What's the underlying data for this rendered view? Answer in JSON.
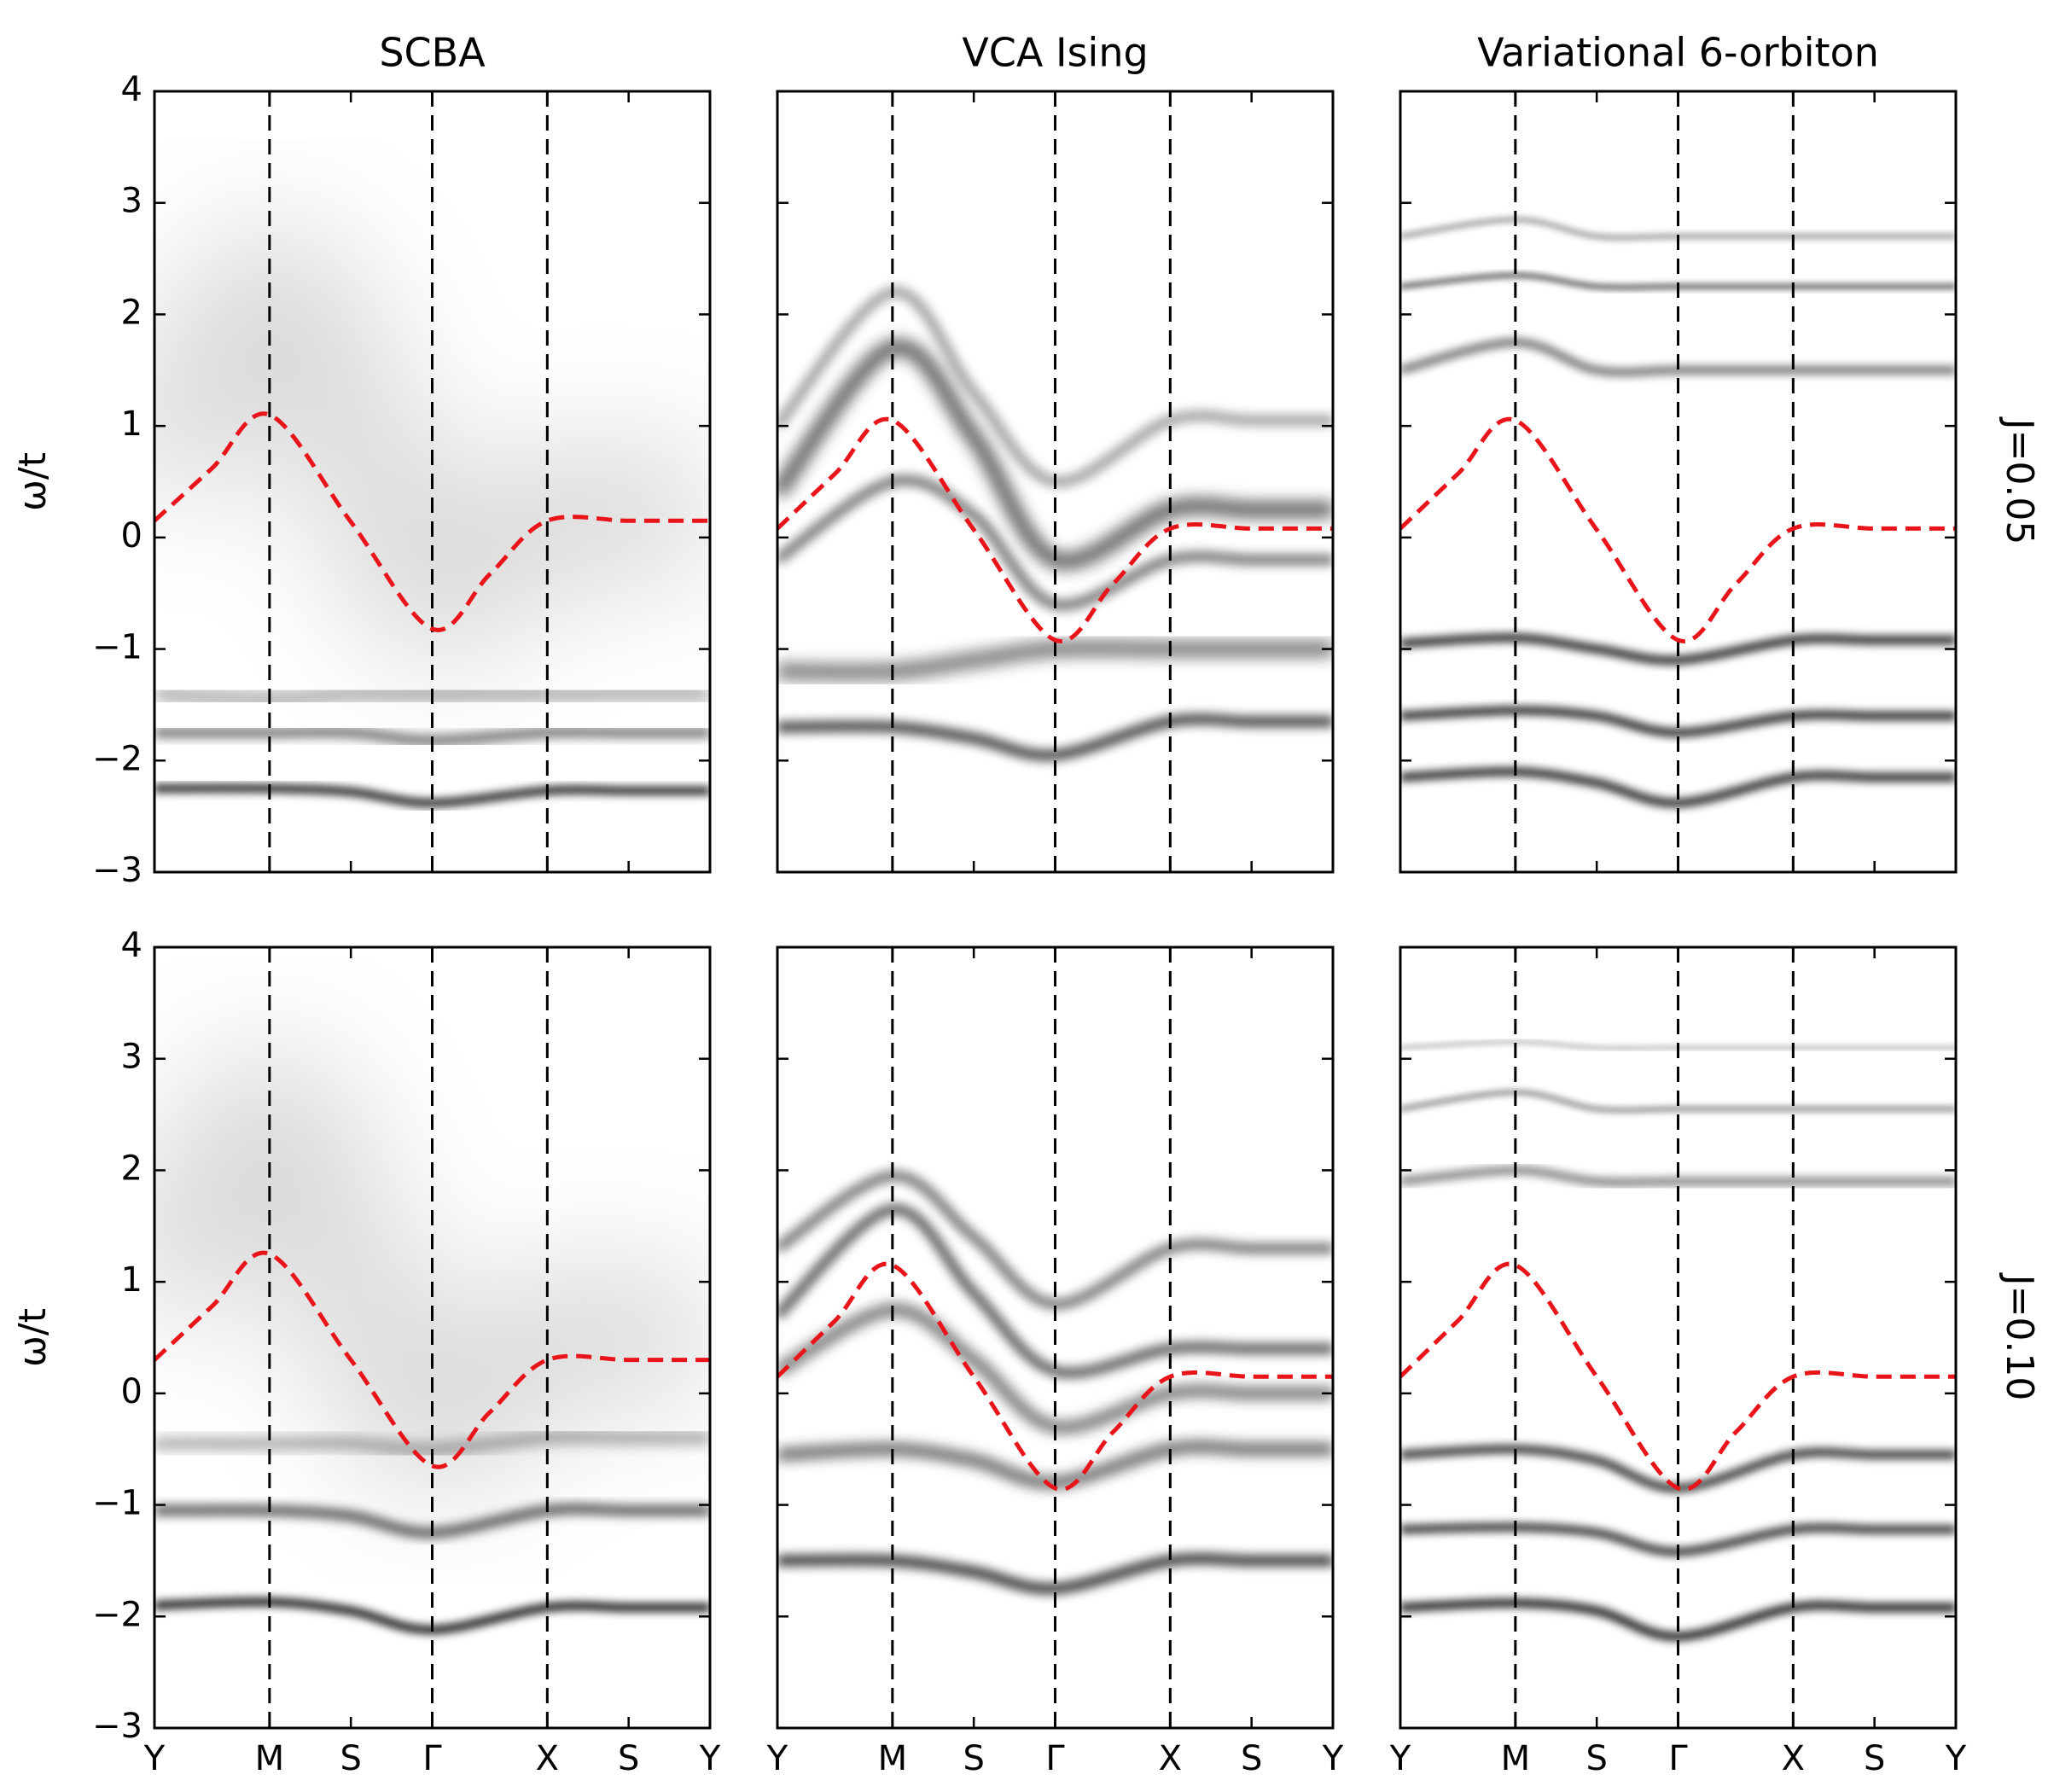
{
  "chart_data": [
    {
      "type": "spectral",
      "title": "SCBA",
      "ylabel": "ω/t",
      "xlim": [
        0,
        4.828
      ],
      "ylim": [
        -3,
        4
      ],
      "xticks": [
        0,
        1,
        1.707,
        2.414,
        3.414,
        4.121,
        4.828
      ],
      "yticks": [
        {
          "value": -3,
          "label": "−3"
        },
        {
          "value": -2,
          "label": "−2"
        },
        {
          "value": -1,
          "label": "−1"
        },
        0,
        1,
        2,
        3,
        4
      ],
      "vlines": [
        1,
        2.414,
        3.414
      ],
      "x": [
        0,
        0.5,
        1,
        1.707,
        2.414,
        2.914,
        3.414,
        4.121,
        4.828
      ],
      "values": [
        0.15,
        0.62,
        1.1,
        0.14,
        -0.82,
        -0.33,
        0.15,
        0.15,
        0.15
      ],
      "line_color": "#e8141a",
      "bands": [
        {
          "values": [
            0.5,
            2.2,
            1.0,
            -0.5,
            0.2,
            0.2,
            0.2
          ],
          "width": 1.2,
          "darkness": 0.15
        },
        {
          "values": [
            -1.4,
            -1.45,
            -1.4,
            -1.4,
            -1.4,
            -1.4,
            -1.4
          ],
          "width": 0.15,
          "darkness": 0.3
        },
        {
          "values": [
            -1.75,
            -1.75,
            -1.75,
            -1.82,
            -1.75,
            -1.75,
            -1.75
          ],
          "width": 0.1,
          "darkness": 0.5
        },
        {
          "values": [
            -2.25,
            -2.25,
            -2.28,
            -2.38,
            -2.27,
            -2.27,
            -2.27
          ],
          "width": 0.08,
          "darkness": 0.8
        }
      ]
    },
    {
      "type": "spectral",
      "title": "VCA Ising",
      "xlim": [
        0,
        4.828
      ],
      "ylim": [
        -3,
        4
      ],
      "xticks": [
        0,
        1,
        1.707,
        2.414,
        3.414,
        4.121,
        4.828
      ],
      "yticks": [
        -3,
        -2,
        -1,
        0,
        1,
        2,
        3,
        4
      ],
      "vlines": [
        1,
        2.414,
        3.414
      ],
      "x": [
        0,
        0.5,
        1,
        1.707,
        2.414,
        2.914,
        3.414,
        4.121,
        4.828
      ],
      "values": [
        0.08,
        0.57,
        1.05,
        0.07,
        -0.92,
        -0.42,
        0.08,
        0.08,
        0.08
      ],
      "line_color": "#e8141a",
      "bands": [
        {
          "values": [
            1.0,
            2.2,
            1.3,
            0.5,
            1.05,
            1.05,
            1.05
          ],
          "width": 0.1,
          "darkness": 0.35
        },
        {
          "values": [
            0.4,
            1.7,
            0.9,
            -0.2,
            0.25,
            0.25,
            0.25
          ],
          "width": 0.15,
          "darkness": 0.6
        },
        {
          "values": [
            -0.2,
            0.5,
            0.2,
            -0.6,
            -0.2,
            -0.2,
            -0.2
          ],
          "width": 0.1,
          "darkness": 0.5
        },
        {
          "values": [
            -1.2,
            -1.2,
            -1.1,
            -1.0,
            -1.0,
            -1.0,
            -1.0
          ],
          "width": 0.15,
          "darkness": 0.5
        },
        {
          "values": [
            -1.7,
            -1.7,
            -1.8,
            -1.95,
            -1.65,
            -1.65,
            -1.65
          ],
          "width": 0.1,
          "darkness": 0.7
        }
      ]
    },
    {
      "type": "spectral",
      "title": "Variational 6-orbiton",
      "side_label": "J=0.05",
      "xlim": [
        0,
        4.828
      ],
      "ylim": [
        -3,
        4
      ],
      "xticks": [
        0,
        1,
        1.707,
        2.414,
        3.414,
        4.121,
        4.828
      ],
      "yticks": [
        -3,
        -2,
        -1,
        0,
        1,
        2,
        3,
        4
      ],
      "vlines": [
        1,
        2.414,
        3.414
      ],
      "x": [
        0,
        0.5,
        1,
        1.707,
        2.414,
        2.914,
        3.414,
        4.121,
        4.828
      ],
      "values": [
        0.08,
        0.57,
        1.05,
        0.07,
        -0.92,
        -0.42,
        0.08,
        0.08,
        0.08
      ],
      "line_color": "#e8141a",
      "bands": [
        {
          "values": [
            2.7,
            2.85,
            2.7,
            2.7,
            2.7,
            2.7,
            2.7
          ],
          "width": 0.06,
          "darkness": 0.3
        },
        {
          "values": [
            2.25,
            2.35,
            2.25,
            2.25,
            2.25,
            2.25,
            2.25
          ],
          "width": 0.06,
          "darkness": 0.5
        },
        {
          "values": [
            1.5,
            1.75,
            1.5,
            1.5,
            1.5,
            1.5,
            1.5
          ],
          "width": 0.08,
          "darkness": 0.5
        },
        {
          "values": [
            -0.95,
            -0.9,
            -1.0,
            -1.1,
            -0.92,
            -0.92,
            -0.92
          ],
          "width": 0.08,
          "darkness": 0.8
        },
        {
          "values": [
            -1.6,
            -1.55,
            -1.6,
            -1.75,
            -1.6,
            -1.6,
            -1.6
          ],
          "width": 0.08,
          "darkness": 0.8
        },
        {
          "values": [
            -2.15,
            -2.1,
            -2.2,
            -2.38,
            -2.15,
            -2.15,
            -2.15
          ],
          "width": 0.08,
          "darkness": 0.8
        }
      ]
    },
    {
      "type": "spectral",
      "ylabel": "ω/t",
      "xlim": [
        0,
        4.828
      ],
      "ylim": [
        -3,
        4
      ],
      "xticks": [
        {
          "value": 0,
          "label": "Y"
        },
        {
          "value": 1,
          "label": "M"
        },
        {
          "value": 1.707,
          "label": "S"
        },
        {
          "value": 2.414,
          "label": "Γ"
        },
        {
          "value": 3.414,
          "label": "X"
        },
        {
          "value": 4.121,
          "label": "S"
        },
        {
          "value": 4.828,
          "label": "Y"
        }
      ],
      "yticks": [
        {
          "value": -3,
          "label": "−3"
        },
        {
          "value": -2,
          "label": "−2"
        },
        {
          "value": -1,
          "label": "−1"
        },
        0,
        1,
        2,
        3,
        4
      ],
      "vlines": [
        1,
        2.414,
        3.414
      ],
      "x": [
        0,
        0.5,
        1,
        1.707,
        2.414,
        2.914,
        3.414,
        4.121,
        4.828
      ],
      "values": [
        0.3,
        0.78,
        1.25,
        0.3,
        -0.65,
        -0.17,
        0.3,
        0.3,
        0.3
      ],
      "line_color": "#e8141a",
      "bands": [
        {
          "values": [
            0.8,
            2.5,
            1.0,
            -0.3,
            0.5,
            0.5,
            0.5
          ],
          "width": 1.2,
          "darkness": 0.15
        },
        {
          "values": [
            -0.45,
            -0.45,
            -0.45,
            -0.5,
            -0.4,
            -0.4,
            -0.4
          ],
          "width": 0.12,
          "darkness": 0.3
        },
        {
          "values": [
            -1.05,
            -1.05,
            -1.1,
            -1.25,
            -1.05,
            -1.05,
            -1.05
          ],
          "width": 0.1,
          "darkness": 0.6
        },
        {
          "values": [
            -1.9,
            -1.87,
            -1.95,
            -2.12,
            -1.92,
            -1.92,
            -1.92
          ],
          "width": 0.08,
          "darkness": 0.85
        }
      ]
    },
    {
      "type": "spectral",
      "xlim": [
        0,
        4.828
      ],
      "ylim": [
        -3,
        4
      ],
      "xticks": [
        {
          "value": 0,
          "label": "Y"
        },
        {
          "value": 1,
          "label": "M"
        },
        {
          "value": 1.707,
          "label": "S"
        },
        {
          "value": 2.414,
          "label": "Γ"
        },
        {
          "value": 3.414,
          "label": "X"
        },
        {
          "value": 4.121,
          "label": "S"
        },
        {
          "value": 4.828,
          "label": "Y"
        }
      ],
      "yticks": [
        -3,
        -2,
        -1,
        0,
        1,
        2,
        3,
        4
      ],
      "vlines": [
        1,
        2.414,
        3.414
      ],
      "x": [
        0,
        0.5,
        1,
        1.707,
        2.414,
        2.914,
        3.414,
        4.121,
        4.828
      ],
      "values": [
        0.15,
        0.65,
        1.15,
        0.15,
        -0.85,
        -0.35,
        0.15,
        0.15,
        0.15
      ],
      "line_color": "#e8141a",
      "bands": [
        {
          "values": [
            1.3,
            1.95,
            1.4,
            0.8,
            1.3,
            1.3,
            1.3
          ],
          "width": 0.1,
          "darkness": 0.5
        },
        {
          "values": [
            0.7,
            1.65,
            0.9,
            0.2,
            0.4,
            0.4,
            0.4
          ],
          "width": 0.1,
          "darkness": 0.6
        },
        {
          "values": [
            0.2,
            0.75,
            0.3,
            -0.3,
            0.0,
            0.0,
            0.0
          ],
          "width": 0.12,
          "darkness": 0.5
        },
        {
          "values": [
            -0.55,
            -0.5,
            -0.6,
            -0.8,
            -0.5,
            -0.5,
            -0.5
          ],
          "width": 0.12,
          "darkness": 0.55
        },
        {
          "values": [
            -1.5,
            -1.5,
            -1.6,
            -1.75,
            -1.5,
            -1.5,
            -1.5
          ],
          "width": 0.1,
          "darkness": 0.75
        }
      ]
    },
    {
      "type": "spectral",
      "side_label": "J=0.10",
      "xlim": [
        0,
        4.828
      ],
      "ylim": [
        -3,
        4
      ],
      "xticks": [
        {
          "value": 0,
          "label": "Y"
        },
        {
          "value": 1,
          "label": "M"
        },
        {
          "value": 1.707,
          "label": "S"
        },
        {
          "value": 2.414,
          "label": "Γ"
        },
        {
          "value": 3.414,
          "label": "X"
        },
        {
          "value": 4.121,
          "label": "S"
        },
        {
          "value": 4.828,
          "label": "Y"
        }
      ],
      "yticks": [
        -3,
        -2,
        -1,
        0,
        1,
        2,
        3,
        4
      ],
      "vlines": [
        1,
        2.414,
        3.414
      ],
      "x": [
        0,
        0.5,
        1,
        1.707,
        2.414,
        2.914,
        3.414,
        4.121,
        4.828
      ],
      "values": [
        0.15,
        0.65,
        1.15,
        0.15,
        -0.85,
        -0.35,
        0.15,
        0.15,
        0.15
      ],
      "line_color": "#e8141a",
      "bands": [
        {
          "values": [
            3.1,
            3.15,
            3.1,
            3.1,
            3.1,
            3.1,
            3.1
          ],
          "width": 0.05,
          "darkness": 0.2
        },
        {
          "values": [
            2.55,
            2.7,
            2.55,
            2.55,
            2.55,
            2.55,
            2.55
          ],
          "width": 0.06,
          "darkness": 0.35
        },
        {
          "values": [
            1.9,
            2.0,
            1.9,
            1.9,
            1.9,
            1.9,
            1.9
          ],
          "width": 0.08,
          "darkness": 0.45
        },
        {
          "values": [
            -0.55,
            -0.5,
            -0.6,
            -0.85,
            -0.55,
            -0.55,
            -0.55
          ],
          "width": 0.08,
          "darkness": 0.75
        },
        {
          "values": [
            -1.22,
            -1.2,
            -1.25,
            -1.42,
            -1.22,
            -1.22,
            -1.22
          ],
          "width": 0.08,
          "darkness": 0.75
        },
        {
          "values": [
            -1.92,
            -1.88,
            -1.95,
            -2.18,
            -1.92,
            -1.92,
            -1.92
          ],
          "width": 0.08,
          "darkness": 0.85
        }
      ]
    }
  ]
}
